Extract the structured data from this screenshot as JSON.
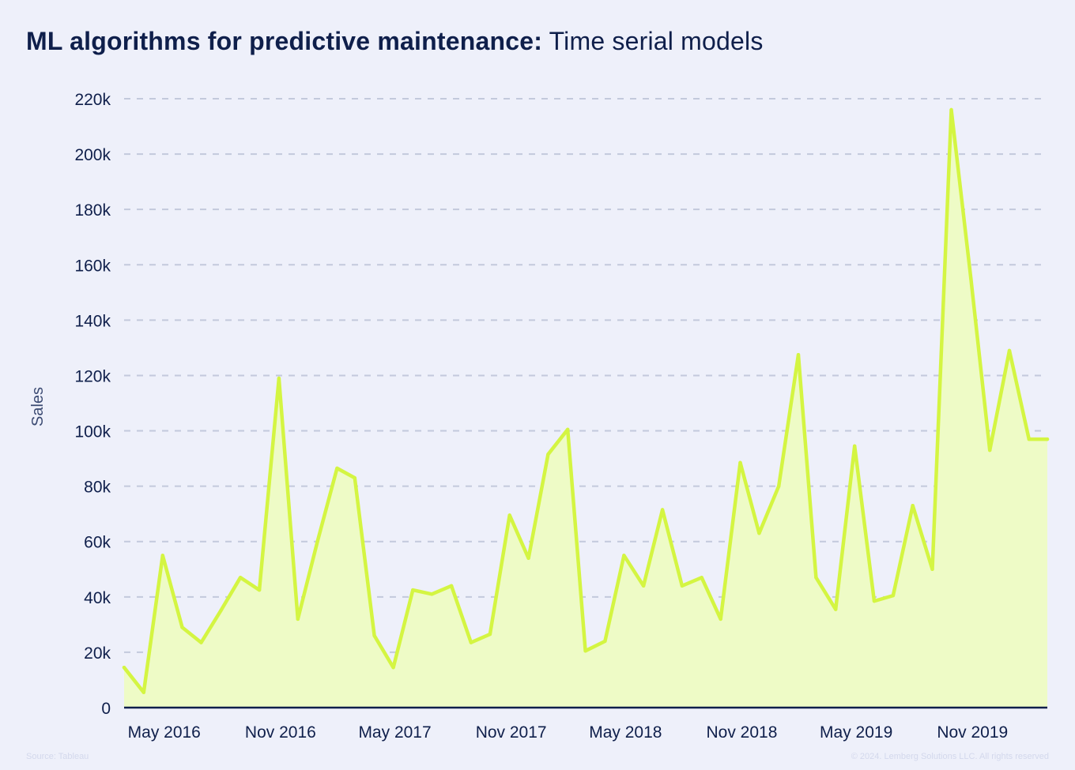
{
  "title": {
    "bold": "ML algorithms for predictive maintenance:",
    "light": "Time serial models"
  },
  "footer": {
    "source": "Source: Tableau",
    "copyright": "© 2024. Lemberg Solutions LLC. All rights reserved"
  },
  "colors": {
    "line": "#d4f542",
    "fill": "#eefbc6",
    "grid": "#c3c9dc",
    "axis": "#0f1f4b"
  },
  "chart_data": {
    "type": "area",
    "ylabel": "Sales",
    "xlabel": "",
    "ylim": [
      0,
      220000
    ],
    "yticks": [
      0,
      20000,
      40000,
      60000,
      80000,
      100000,
      120000,
      140000,
      160000,
      180000,
      200000,
      220000
    ],
    "ytick_labels": [
      "0",
      "20k",
      "40k",
      "60k",
      "80k",
      "100k",
      "120k",
      "140k",
      "160k",
      "180k",
      "200k",
      "220k"
    ],
    "xticks": [
      "May 2016",
      "Nov 2016",
      "May 2017",
      "Nov 2017",
      "May 2018",
      "Nov 2018",
      "May 2019",
      "Nov 2019"
    ],
    "grid": true,
    "x": [
      "2016-03-01",
      "2016-04-01",
      "2016-05-01",
      "2016-06-01",
      "2016-07-01",
      "2016-08-01",
      "2016-09-01",
      "2016-10-01",
      "2016-11-01",
      "2016-12-01",
      "2017-01-01",
      "2017-02-01",
      "2017-03-01",
      "2017-04-01",
      "2017-05-01",
      "2017-06-01",
      "2017-07-01",
      "2017-08-01",
      "2017-09-01",
      "2017-10-01",
      "2017-11-01",
      "2017-12-01",
      "2018-01-01",
      "2018-02-01",
      "2018-03-01",
      "2018-04-01",
      "2018-05-01",
      "2018-06-01",
      "2018-07-01",
      "2018-08-01",
      "2018-09-01",
      "2018-10-01",
      "2018-11-01",
      "2018-12-01",
      "2019-01-01",
      "2019-02-01",
      "2019-03-01",
      "2019-04-01",
      "2019-05-01",
      "2019-06-01",
      "2019-07-01",
      "2019-08-01",
      "2019-09-01",
      "2019-10-01",
      "2019-11-01",
      "2019-12-01",
      "2020-01-01",
      "2020-02-01",
      "2020-03-01"
    ],
    "values": [
      14500,
      5500,
      55000,
      29000,
      23500,
      35000,
      47000,
      42500,
      119000,
      32000,
      60000,
      86500,
      83000,
      26000,
      14500,
      42500,
      41000,
      44000,
      23500,
      26500,
      69500,
      54000,
      91500,
      100500,
      20500,
      24000,
      55000,
      44000,
      71500,
      44000,
      47000,
      32000,
      88500,
      63000,
      80000,
      127500,
      47000,
      35500,
      94500,
      38500,
      40500,
      73000,
      50000,
      216000,
      155000,
      93000,
      129000,
      97000,
      97000
    ]
  }
}
